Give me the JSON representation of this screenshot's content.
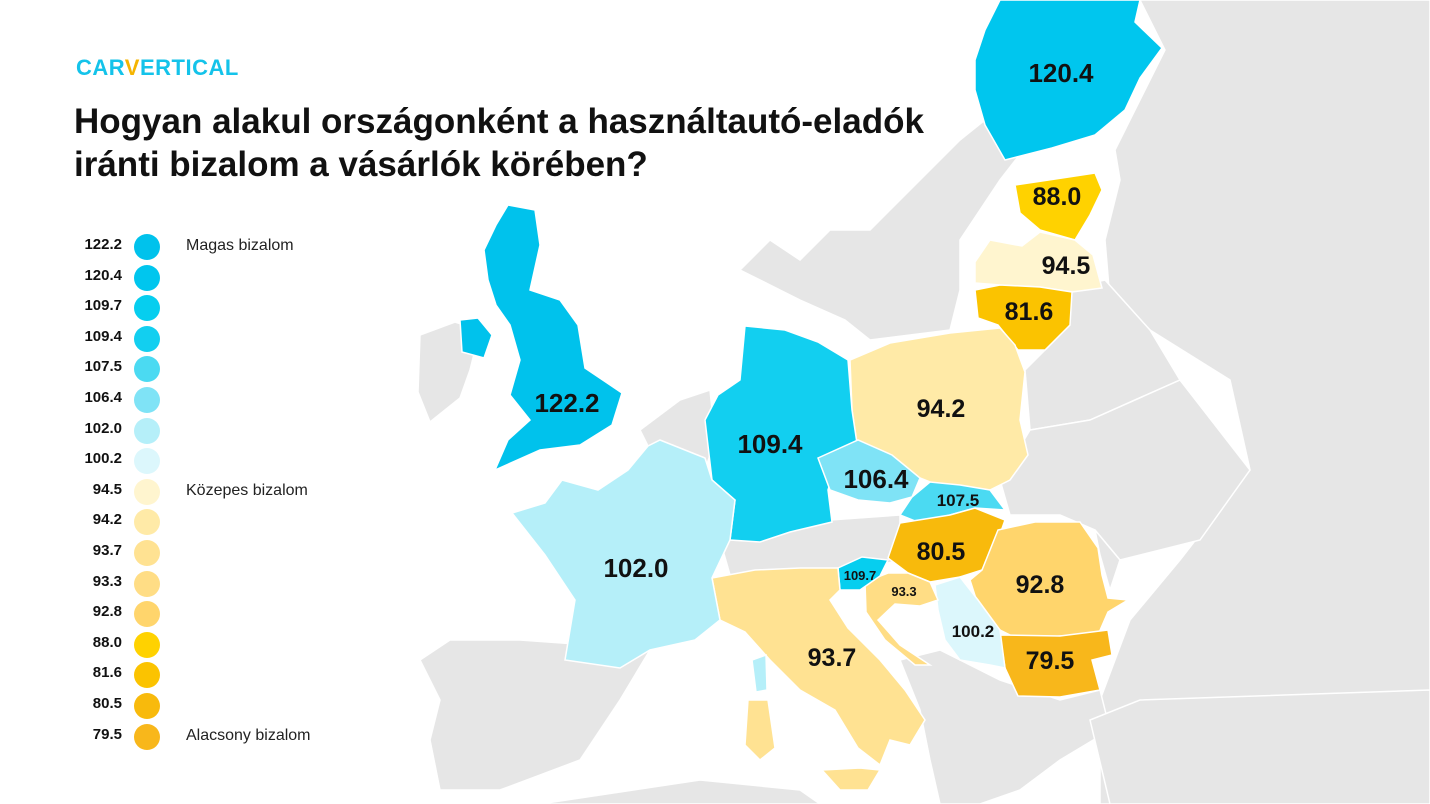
{
  "brand": {
    "prefix": "CAR",
    "v": "V",
    "suffix": "ERTICAL"
  },
  "title_line1": "Hogyan alakul országonként a használtautó-eladók",
  "title_line2": "iránti bizalom a vásárlók körében?",
  "legend": [
    {
      "value": "122.2",
      "color": "#00c2ec",
      "tag": "Magas bizalom"
    },
    {
      "value": "120.4",
      "color": "#00c6ee",
      "tag": ""
    },
    {
      "value": "109.7",
      "color": "#06ceef",
      "tag": ""
    },
    {
      "value": "109.4",
      "color": "#12cff0",
      "tag": ""
    },
    {
      "value": "107.5",
      "color": "#4bdaf2",
      "tag": ""
    },
    {
      "value": "106.4",
      "color": "#7fe3f6",
      "tag": ""
    },
    {
      "value": "102.0",
      "color": "#b5eff9",
      "tag": ""
    },
    {
      "value": "100.2",
      "color": "#dcf7fc",
      "tag": ""
    },
    {
      "value": "94.5",
      "color": "#fff5cf",
      "tag": "Közepes bizalom"
    },
    {
      "value": "94.2",
      "color": "#ffeaa7",
      "tag": ""
    },
    {
      "value": "93.7",
      "color": "#ffe292",
      "tag": ""
    },
    {
      "value": "93.3",
      "color": "#ffdd85",
      "tag": ""
    },
    {
      "value": "92.8",
      "color": "#ffd56c",
      "tag": ""
    },
    {
      "value": "88.0",
      "color": "#ffd200",
      "tag": ""
    },
    {
      "value": "81.6",
      "color": "#fbc300",
      "tag": ""
    },
    {
      "value": "80.5",
      "color": "#f8ba0c",
      "tag": ""
    },
    {
      "value": "79.5",
      "color": "#f8b71b",
      "tag": "Alacsony bizalom"
    }
  ],
  "map_values": {
    "uk": "122.2",
    "finland": "120.4",
    "estonia": "88.0",
    "latvia": "94.5",
    "lithuania": "81.6",
    "poland": "94.2",
    "germany": "109.4",
    "czechia": "106.4",
    "slovakia": "107.5",
    "hungary": "80.5",
    "romania": "92.8",
    "bulgaria": "79.5",
    "serbia": "100.2",
    "croatia": "93.3",
    "slovenia": "109.7",
    "italy": "93.7",
    "france": "102.0"
  },
  "colors": {
    "background_land": "#e6e6e6",
    "border": "#ffffff",
    "title": "#111111",
    "brand": "#14c3ea",
    "brand_accent": "#f5b400"
  }
}
